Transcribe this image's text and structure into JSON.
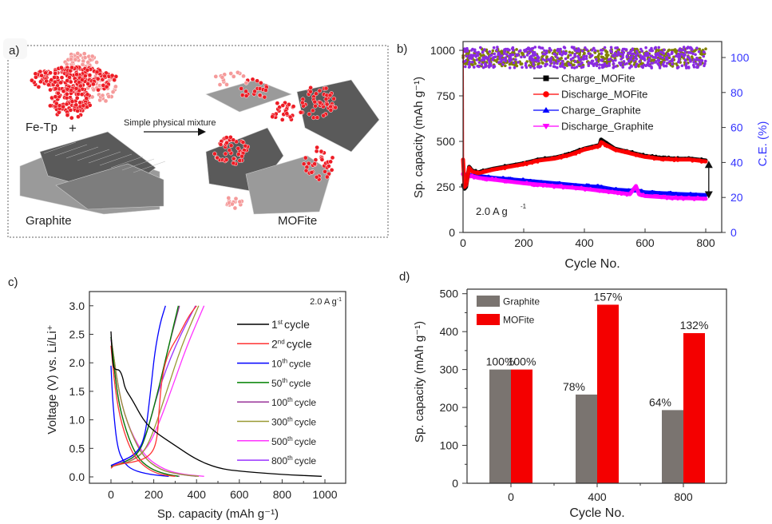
{
  "panel_a": {
    "label": "a)",
    "fetp_label": "Fe-Tp",
    "plus_sign": "+",
    "graphite_label": "Graphite",
    "arrow_label": "Simple physical mixture",
    "mofite_label": "MOFite",
    "colors": {
      "fetp_red": "#ee1c25",
      "fetp_light": "#f59a9a",
      "graphite_dark": "#5a5a5a",
      "graphite_light": "#9a9a9a"
    }
  },
  "chart_data": [
    {
      "id": "b",
      "panel_label": "b)",
      "type": "scatter",
      "title": "",
      "xlabel": "Cycle No.",
      "ylabel": "Sp. capacity (mAh g⁻¹)",
      "y2label": "C.E. (%)",
      "xlim": [
        0,
        850
      ],
      "ylim": [
        0,
        1050
      ],
      "y2lim": [
        0,
        110
      ],
      "xticks": [
        0,
        200,
        400,
        600,
        800
      ],
      "yticks": [
        0,
        250,
        500,
        750,
        1000
      ],
      "y2ticks": [
        0,
        20,
        40,
        60,
        80,
        100
      ],
      "annotation": "2.0 A g",
      "annotation_sup": "-1",
      "legend_position": "top-center",
      "grid": false,
      "series": [
        {
          "name": "Charge_MOFite",
          "color": "#000000",
          "marker": "square",
          "x": [
            0,
            5,
            10,
            20,
            30,
            50,
            100,
            150,
            200,
            250,
            300,
            350,
            400,
            450,
            455,
            500,
            550,
            600,
            650,
            700,
            750,
            800
          ],
          "y": [
            260,
            240,
            250,
            360,
            340,
            330,
            350,
            365,
            380,
            400,
            410,
            430,
            460,
            480,
            510,
            460,
            440,
            420,
            410,
            405,
            405,
            395
          ]
        },
        {
          "name": "Discharge_MOFite",
          "color": "#ff0000",
          "marker": "circle",
          "x": [
            0,
            5,
            10,
            20,
            30,
            50,
            100,
            150,
            200,
            250,
            300,
            350,
            400,
            450,
            455,
            500,
            550,
            600,
            650,
            700,
            750,
            800
          ],
          "y": [
            400,
            250,
            260,
            355,
            335,
            325,
            345,
            360,
            375,
            395,
            405,
            425,
            455,
            475,
            495,
            455,
            435,
            415,
            405,
            400,
            400,
            390
          ]
        },
        {
          "name": "Charge_Graphite",
          "color": "#0000ff",
          "marker": "triangle-up",
          "x": [
            0,
            50,
            100,
            200,
            300,
            400,
            450,
            500,
            550,
            575,
            600,
            700,
            800
          ],
          "y": [
            320,
            310,
            300,
            285,
            270,
            255,
            250,
            235,
            230,
            230,
            220,
            212,
            205
          ]
        },
        {
          "name": "Discharge_Graphite",
          "color": "#ff00ff",
          "marker": "triangle-down",
          "x": [
            0,
            50,
            100,
            200,
            300,
            400,
            450,
            500,
            550,
            570,
            580,
            600,
            700,
            800
          ],
          "y": [
            320,
            300,
            290,
            270,
            255,
            240,
            230,
            220,
            210,
            255,
            210,
            200,
            190,
            185
          ]
        },
        {
          "name": "CE_MOFite",
          "axis": "right",
          "color": "#808000",
          "marker": "circle",
          "x_range": [
            0,
            800
          ],
          "y_mean": 100,
          "y_spread": 5
        },
        {
          "name": "CE_Graphite",
          "axis": "right",
          "color": "#8a2be2",
          "marker": "circle",
          "x_range": [
            0,
            800
          ],
          "y_mean": 100,
          "y_spread": 6
        }
      ],
      "retention_arrow": {
        "x": 810,
        "y_from": 385,
        "y_to": 195
      }
    },
    {
      "id": "c",
      "panel_label": "c)",
      "type": "line",
      "title": "",
      "xlabel": "Sp. capacity (mAh g⁻¹)",
      "ylabel": "Voltage (V) vs. Li/Li⁺",
      "xlim": [
        -100,
        1100
      ],
      "ylim": [
        -0.1,
        3.2
      ],
      "xticks": [
        0,
        200,
        400,
        600,
        800,
        1000
      ],
      "yticks": [
        0.0,
        0.5,
        1.0,
        1.5,
        2.0,
        2.5,
        3.0
      ],
      "ytick_labels": [
        "0.0",
        "0.5",
        "1.0",
        "1.5",
        "2.0",
        "2.5",
        "3.0"
      ],
      "annotation": "2.0 A g",
      "annotation_sup": "-1",
      "legend_position": "right",
      "grid": false,
      "series": [
        {
          "name": "1st cycle",
          "num": "1",
          "sup": "st",
          "color": "#000000",
          "discharge": [
            [
              0,
              2.55
            ],
            [
              8,
              1.95
            ],
            [
              20,
              1.88
            ],
            [
              40,
              1.88
            ],
            [
              55,
              1.75
            ],
            [
              65,
              1.55
            ],
            [
              100,
              1.35
            ],
            [
              150,
              1.0
            ],
            [
              200,
              0.8
            ],
            [
              300,
              0.55
            ],
            [
              400,
              0.3
            ],
            [
              500,
              0.15
            ],
            [
              600,
              0.1
            ],
            [
              800,
              0.04
            ],
            [
              985,
              0.01
            ]
          ]
        },
        {
          "name": "2nd cycle",
          "num": "2",
          "sup": "nd",
          "color": "#ff3333",
          "discharge": [
            [
              0,
              2.3
            ],
            [
              20,
              1.5
            ],
            [
              50,
              0.9
            ],
            [
              100,
              0.4
            ],
            [
              150,
              0.2
            ],
            [
              200,
              0.08
            ],
            [
              250,
              0.03
            ],
            [
              300,
              0.01
            ]
          ],
          "charge": [
            [
              0,
              0.15
            ],
            [
              20,
              0.22
            ],
            [
              100,
              0.25
            ],
            [
              180,
              0.35
            ],
            [
              215,
              0.6
            ],
            [
              225,
              1.2
            ],
            [
              240,
              1.8
            ],
            [
              270,
              2.2
            ],
            [
              320,
              2.5
            ],
            [
              360,
              2.8
            ],
            [
              400,
              3.0
            ]
          ]
        },
        {
          "name": "10th cycle",
          "num": "10",
          "sup": "th",
          "color": "#0000ff",
          "discharge": [
            [
              0,
              1.95
            ],
            [
              10,
              1.2
            ],
            [
              30,
              0.5
            ],
            [
              60,
              0.25
            ],
            [
              100,
              0.12
            ],
            [
              180,
              0.04
            ],
            [
              270,
              0.01
            ]
          ],
          "charge": [
            [
              0,
              0.2
            ],
            [
              50,
              0.28
            ],
            [
              120,
              0.4
            ],
            [
              160,
              0.7
            ],
            [
              185,
              1.5
            ],
            [
              205,
              2.2
            ],
            [
              230,
              2.7
            ],
            [
              255,
              3.0
            ]
          ]
        },
        {
          "name": "50th cycle",
          "num": "50",
          "sup": "th",
          "color": "#008000",
          "discharge": [
            [
              0,
              2.45
            ],
            [
              30,
              1.4
            ],
            [
              70,
              0.8
            ],
            [
              120,
              0.35
            ],
            [
              180,
              0.15
            ],
            [
              250,
              0.05
            ],
            [
              315,
              0.01
            ]
          ],
          "charge": [
            [
              0,
              0.18
            ],
            [
              60,
              0.25
            ],
            [
              130,
              0.4
            ],
            [
              170,
              0.8
            ],
            [
              220,
              1.5
            ],
            [
              270,
              2.3
            ],
            [
              315,
              3.0
            ]
          ]
        },
        {
          "name": "100th cycle",
          "num": "100",
          "sup": "th",
          "color": "#993399",
          "discharge": [
            [
              0,
              2.45
            ],
            [
              30,
              1.4
            ],
            [
              70,
              0.8
            ],
            [
              120,
              0.35
            ],
            [
              180,
              0.15
            ],
            [
              250,
              0.05
            ],
            [
              320,
              0.01
            ]
          ],
          "charge": [
            [
              0,
              0.18
            ],
            [
              60,
              0.25
            ],
            [
              130,
              0.4
            ],
            [
              170,
              0.8
            ],
            [
              220,
              1.5
            ],
            [
              270,
              2.3
            ],
            [
              320,
              3.0
            ]
          ]
        },
        {
          "name": "300th cycle",
          "num": "300",
          "sup": "th",
          "color": "#999933",
          "discharge": [
            [
              0,
              2.45
            ],
            [
              40,
              1.4
            ],
            [
              90,
              0.8
            ],
            [
              150,
              0.35
            ],
            [
              230,
              0.12
            ],
            [
              320,
              0.04
            ],
            [
              410,
              0.01
            ]
          ],
          "charge": [
            [
              0,
              0.18
            ],
            [
              80,
              0.25
            ],
            [
              150,
              0.4
            ],
            [
              200,
              0.8
            ],
            [
              260,
              1.5
            ],
            [
              330,
              2.3
            ],
            [
              410,
              3.0
            ]
          ]
        },
        {
          "name": "500th cycle",
          "num": "500",
          "sup": "th",
          "color": "#ff33ff",
          "discharge": [
            [
              0,
              2.4
            ],
            [
              40,
              1.4
            ],
            [
              90,
              0.8
            ],
            [
              160,
              0.35
            ],
            [
              250,
              0.12
            ],
            [
              340,
              0.04
            ],
            [
              435,
              0.01
            ]
          ],
          "charge": [
            [
              0,
              0.18
            ],
            [
              80,
              0.25
            ],
            [
              160,
              0.45
            ],
            [
              210,
              0.8
            ],
            [
              280,
              1.5
            ],
            [
              355,
              2.3
            ],
            [
              435,
              3.0
            ]
          ]
        },
        {
          "name": "800th cycle",
          "num": "800",
          "sup": "th",
          "color": "#9933ff",
          "discharge": [
            [
              0,
              2.45
            ],
            [
              40,
              1.4
            ],
            [
              90,
              0.8
            ],
            [
              150,
              0.35
            ],
            [
              230,
              0.12
            ],
            [
              320,
              0.04
            ],
            [
              400,
              0.01
            ]
          ],
          "charge": [
            [
              0,
              0.2
            ],
            [
              60,
              0.28
            ],
            [
              130,
              0.45
            ],
            [
              170,
              0.8
            ],
            [
              220,
              1.5
            ],
            [
              300,
              2.3
            ],
            [
              395,
              3.0
            ]
          ]
        }
      ],
      "legend_suffix": "cycle"
    },
    {
      "id": "d",
      "panel_label": "d)",
      "type": "bar",
      "title": "",
      "xlabel": "Cycle No.",
      "ylabel": "Sp. capacity (mAh g⁻¹)",
      "categories": [
        "0",
        "400",
        "800"
      ],
      "ylim": [
        0,
        500
      ],
      "yticks": [
        0,
        100,
        200,
        300,
        400,
        500
      ],
      "legend_position": "top-left",
      "grid": false,
      "series": [
        {
          "name": "Graphite",
          "color": "#7a7470",
          "values": [
            300,
            234,
            193
          ],
          "labels": [
            "100%",
            "78%",
            "64%"
          ]
        },
        {
          "name": "MOFite",
          "color": "#f40000",
          "values": [
            300,
            471,
            396
          ],
          "labels": [
            "100%",
            "157%",
            "132%"
          ]
        }
      ]
    }
  ]
}
